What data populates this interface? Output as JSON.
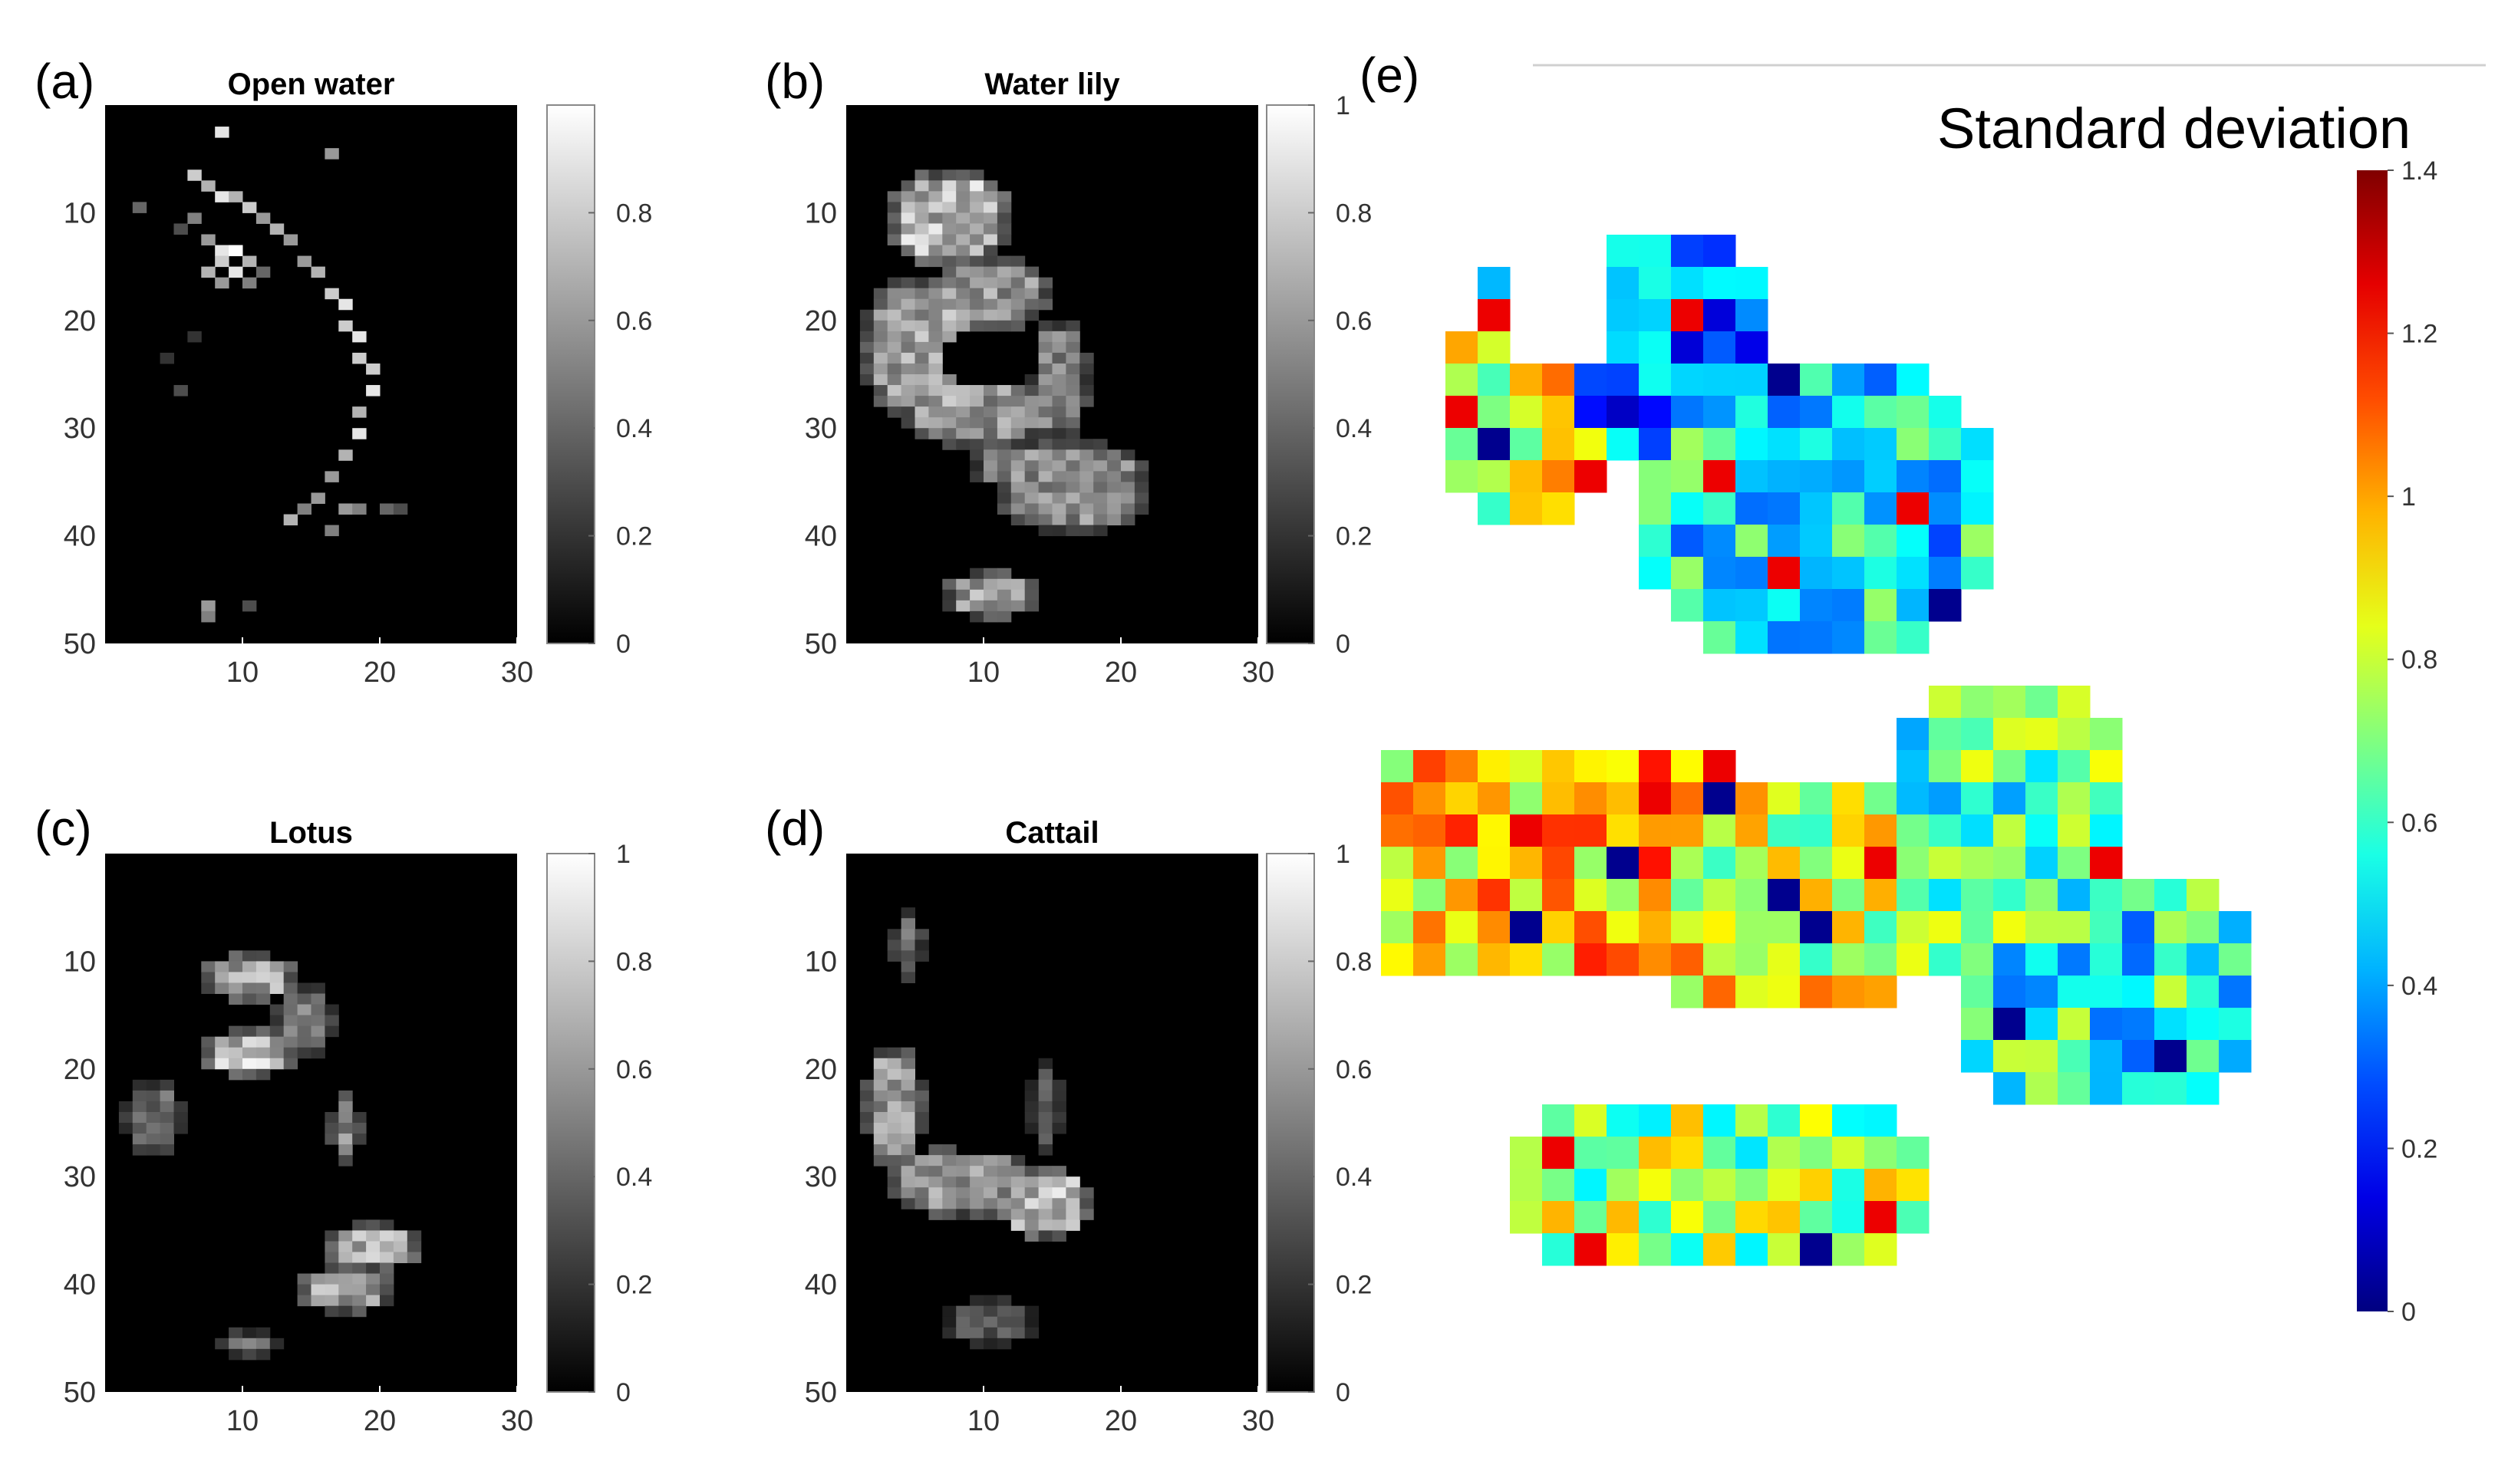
{
  "panel_e": {
    "title": "Standard deviation",
    "label": "(e)"
  },
  "chart_data": [
    {
      "type": "heatmap",
      "label": "(a)",
      "title": "Open water",
      "xlim": [
        0,
        30
      ],
      "ylim": [
        0,
        50
      ],
      "xticks": [
        10,
        20,
        30
      ],
      "yticks": [
        10,
        20,
        30,
        40,
        50
      ],
      "colorbar": {
        "min": 0,
        "max": 1,
        "ticks": [
          "0",
          "0.2",
          "0.4",
          "0.6",
          "0.8"
        ],
        "colormap": "gray"
      },
      "cells": [
        [
          3,
          10,
          0.4
        ],
        [
          6,
          12,
          0.3
        ],
        [
          7,
          7,
          0.8
        ],
        [
          7,
          11,
          0.5
        ],
        [
          8,
          8,
          0.7
        ],
        [
          8,
          13,
          0.6
        ],
        [
          8,
          16,
          0.7
        ],
        [
          9,
          3,
          0.9
        ],
        [
          9,
          9,
          0.9
        ],
        [
          9,
          14,
          0.9
        ],
        [
          9,
          15,
          0.8
        ],
        [
          9,
          17,
          0.6
        ],
        [
          10,
          9,
          0.7
        ],
        [
          10,
          14,
          1.0
        ],
        [
          10,
          16,
          0.9
        ],
        [
          11,
          10,
          0.8
        ],
        [
          11,
          15,
          0.7
        ],
        [
          11,
          17,
          0.5
        ],
        [
          12,
          11,
          0.6
        ],
        [
          12,
          16,
          0.4
        ],
        [
          13,
          12,
          0.7
        ],
        [
          14,
          13,
          0.6
        ],
        [
          15,
          15,
          0.6
        ],
        [
          16,
          16,
          0.7
        ],
        [
          17,
          18,
          0.8
        ],
        [
          17,
          5,
          0.6
        ],
        [
          18,
          19,
          0.9
        ],
        [
          18,
          21,
          0.8
        ],
        [
          19,
          22,
          0.9
        ],
        [
          19,
          24,
          0.8
        ],
        [
          20,
          25,
          0.8
        ],
        [
          20,
          27,
          0.9
        ],
        [
          19,
          29,
          0.7
        ],
        [
          19,
          31,
          0.9
        ],
        [
          18,
          33,
          0.7
        ],
        [
          17,
          35,
          0.6
        ],
        [
          16,
          37,
          0.6
        ],
        [
          15,
          38,
          0.5
        ],
        [
          14,
          39,
          0.7
        ],
        [
          17,
          40,
          0.5
        ],
        [
          18,
          38,
          0.6
        ],
        [
          19,
          38,
          0.5
        ],
        [
          21,
          38,
          0.4
        ],
        [
          22,
          38,
          0.3
        ],
        [
          8,
          47,
          0.6
        ],
        [
          8,
          48,
          0.5
        ],
        [
          11,
          47,
          0.3
        ],
        [
          7,
          22,
          0.2
        ],
        [
          5,
          24,
          0.2
        ],
        [
          6,
          27,
          0.3
        ]
      ]
    },
    {
      "type": "heatmap",
      "label": "(b)",
      "title": "Water lily",
      "xlim": [
        0,
        30
      ],
      "ylim": [
        0,
        50
      ],
      "xticks": [
        10,
        20,
        30
      ],
      "yticks": [
        10,
        20,
        30,
        40,
        50
      ],
      "colorbar": {
        "min": 0,
        "max": 1,
        "ticks": [
          "0",
          "0.2",
          "0.4",
          "0.6",
          "0.8",
          "1"
        ],
        "colormap": "gray"
      },
      "blobs": [
        {
          "cx": 8,
          "cy": 11,
          "rx": 4,
          "ry": 4,
          "v": 0.85
        },
        {
          "cx": 11,
          "cy": 18,
          "rx": 4,
          "ry": 3,
          "v": 0.7
        },
        {
          "cx": 6,
          "cy": 23,
          "rx": 4,
          "ry": 6,
          "v": 0.75
        },
        {
          "cx": 10,
          "cy": 29,
          "rx": 5,
          "ry": 3,
          "v": 0.7
        },
        {
          "cx": 16,
          "cy": 26,
          "rx": 2,
          "ry": 5,
          "v": 0.6
        },
        {
          "cx": 17,
          "cy": 36,
          "rx": 5,
          "ry": 4,
          "v": 0.65
        },
        {
          "cx": 13,
          "cy": 34,
          "rx": 3,
          "ry": 2,
          "v": 0.55
        },
        {
          "cx": 11,
          "cy": 46,
          "rx": 3,
          "ry": 2,
          "v": 0.75
        }
      ],
      "holes": [
        {
          "cx": 11,
          "cy": 24,
          "rx": 4,
          "ry": 3
        }
      ]
    },
    {
      "type": "heatmap",
      "label": "(c)",
      "title": "Lotus",
      "xlim": [
        0,
        30
      ],
      "ylim": [
        0,
        50
      ],
      "xticks": [
        10,
        20,
        30
      ],
      "yticks": [
        10,
        20,
        30,
        40,
        50
      ],
      "colorbar": {
        "min": 0,
        "max": 1,
        "ticks": [
          "0",
          "0.2",
          "0.4",
          "0.6",
          "0.8",
          "1"
        ],
        "colormap": "gray"
      },
      "blobs": [
        {
          "cx": 11,
          "cy": 12,
          "rx": 3,
          "ry": 2,
          "v": 0.8
        },
        {
          "cx": 11,
          "cy": 19,
          "rx": 3,
          "ry": 2,
          "v": 0.9
        },
        {
          "cx": 15,
          "cy": 16,
          "rx": 2,
          "ry": 3,
          "v": 0.6
        },
        {
          "cx": 18,
          "cy": 26,
          "rx": 1,
          "ry": 3,
          "v": 0.7
        },
        {
          "cx": 4,
          "cy": 25,
          "rx": 2,
          "ry": 3,
          "v": 0.5
        },
        {
          "cx": 20,
          "cy": 37,
          "rx": 3,
          "ry": 2,
          "v": 0.8
        },
        {
          "cx": 18,
          "cy": 41,
          "rx": 3,
          "ry": 2,
          "v": 0.75
        },
        {
          "cx": 11,
          "cy": 46,
          "rx": 2,
          "ry": 1,
          "v": 0.5
        }
      ],
      "holes": []
    },
    {
      "type": "heatmap",
      "label": "(d)",
      "title": "Cattail",
      "xlim": [
        0,
        30
      ],
      "ylim": [
        0,
        50
      ],
      "xticks": [
        10,
        20,
        30
      ],
      "yticks": [
        10,
        20,
        30,
        40,
        50
      ],
      "colorbar": {
        "min": 0,
        "max": 1,
        "ticks": [
          "0",
          "0.2",
          "0.4",
          "0.6",
          "0.8",
          "1"
        ],
        "colormap": "gray"
      },
      "blobs": [
        {
          "cx": 5,
          "cy": 9,
          "rx": 1,
          "ry": 3,
          "v": 0.55
        },
        {
          "cx": 4,
          "cy": 24,
          "rx": 2,
          "ry": 5,
          "v": 0.7
        },
        {
          "cx": 9,
          "cy": 31,
          "rx": 5,
          "ry": 3,
          "v": 0.7
        },
        {
          "cx": 15,
          "cy": 33,
          "rx": 3,
          "ry": 3,
          "v": 0.85
        },
        {
          "cx": 15,
          "cy": 24,
          "rx": 1,
          "ry": 4,
          "v": 0.45
        },
        {
          "cx": 11,
          "cy": 44,
          "rx": 3,
          "ry": 2,
          "v": 0.4
        }
      ],
      "holes": [
        {
          "cx": 11,
          "cy": 26,
          "rx": 3,
          "ry": 3
        }
      ]
    },
    {
      "type": "heatmap",
      "label": "(e)",
      "title": "Standard deviation",
      "colorbar": {
        "min": 0,
        "max": 1.4,
        "ticks": [
          "0",
          "0.2",
          "0.4",
          "0.6",
          "0.8",
          "1",
          "1.2",
          "1.4"
        ],
        "colormap": "jet"
      },
      "grid": {
        "cols": 29,
        "rows": 36
      },
      "blobs": [
        {
          "cx": 7,
          "cy": 5,
          "rx": 5,
          "ry": 4,
          "v": 0.35
        },
        {
          "cx": 4,
          "cy": 7,
          "rx": 3,
          "ry": 4,
          "v": 0.85
        },
        {
          "cx": 13,
          "cy": 10,
          "rx": 6,
          "ry": 5,
          "v": 0.5
        },
        {
          "cx": 5,
          "cy": 21,
          "rx": 9,
          "ry": 4,
          "v": 0.95
        },
        {
          "cx": 12,
          "cy": 22,
          "rx": 6,
          "ry": 4,
          "v": 0.85
        },
        {
          "cx": 19,
          "cy": 20,
          "rx": 4,
          "ry": 5,
          "v": 0.65
        },
        {
          "cx": 22,
          "cy": 25,
          "rx": 5,
          "ry": 4,
          "v": 0.55
        },
        {
          "cx": 10,
          "cy": 31,
          "rx": 7,
          "ry": 3,
          "v": 0.75
        }
      ],
      "holes": [
        {
          "cx": 9,
          "cy": 16,
          "rx": 4,
          "ry": 2
        },
        {
          "cx": 5,
          "cy": 3,
          "rx": 2,
          "ry": 3
        },
        {
          "cx": 7,
          "cy": 27,
          "rx": 2,
          "ry": 2
        }
      ]
    }
  ]
}
